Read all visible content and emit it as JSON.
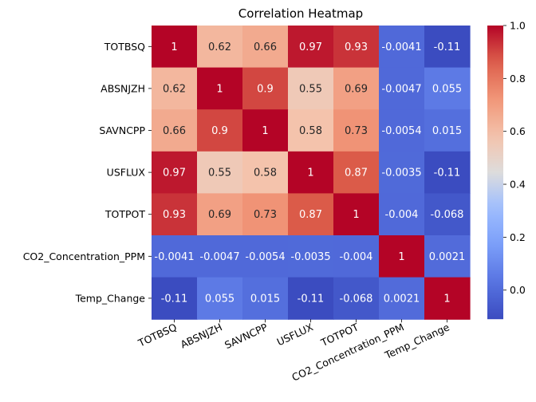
{
  "chart_data": {
    "type": "heatmap",
    "title": "Correlation Heatmap",
    "colormap": "coolwarm",
    "colors": {
      "low": "#3b4cc0",
      "mid": "#dddcdc",
      "high": "#b40426"
    },
    "rows": [
      "TOTBSQ",
      "ABSNJZH",
      "SAVNCPP",
      "USFLUX",
      "TOTPOT",
      "CO2_Concentration_PPM",
      "Temp_Change"
    ],
    "columns": [
      "TOTBSQ",
      "ABSNJZH",
      "SAVNCPP",
      "USFLUX",
      "TOTPOT",
      "CO2_Concentration_PPM",
      "Temp_Change"
    ],
    "values": [
      [
        1,
        0.62,
        0.66,
        0.97,
        0.93,
        -0.0041,
        -0.11
      ],
      [
        0.62,
        1,
        0.9,
        0.55,
        0.69,
        -0.0047,
        0.055
      ],
      [
        0.66,
        0.9,
        1,
        0.58,
        0.73,
        -0.0054,
        0.015
      ],
      [
        0.97,
        0.55,
        0.58,
        1,
        0.87,
        -0.0035,
        -0.11
      ],
      [
        0.93,
        0.69,
        0.73,
        0.87,
        1,
        -0.004,
        -0.068
      ],
      [
        -0.0041,
        -0.0047,
        -0.0054,
        -0.0035,
        -0.004,
        1,
        0.0021
      ],
      [
        -0.11,
        0.055,
        0.015,
        -0.11,
        -0.068,
        0.0021,
        1
      ]
    ],
    "cell_labels": [
      [
        "1",
        "0.62",
        "0.66",
        "0.97",
        "0.93",
        "-0.0041",
        "-0.11"
      ],
      [
        "0.62",
        "1",
        "0.9",
        "0.55",
        "0.69",
        "-0.0047",
        "0.055"
      ],
      [
        "0.66",
        "0.9",
        "1",
        "0.58",
        "0.73",
        "-0.0054",
        "0.015"
      ],
      [
        "0.97",
        "0.55",
        "0.58",
        "1",
        "0.87",
        "-0.0035",
        "-0.11"
      ],
      [
        "0.93",
        "0.69",
        "0.73",
        "0.87",
        "1",
        "-0.004",
        "-0.068"
      ],
      [
        "-0.0041",
        "-0.0047",
        "-0.0054",
        "-0.0035",
        "-0.004",
        "1",
        "0.0021"
      ],
      [
        "-0.11",
        "0.055",
        "0.015",
        "-0.11",
        "-0.068",
        "0.0021",
        "1"
      ]
    ],
    "colorbar": {
      "range": [
        -0.11,
        1
      ],
      "ticks": [
        0.0,
        0.2,
        0.4,
        0.6,
        0.8,
        1.0
      ],
      "tick_labels": [
        "0.0",
        "0.2",
        "0.4",
        "0.6",
        "0.8",
        "1.0"
      ]
    },
    "xlabel": "",
    "ylabel": "",
    "grid": false
  }
}
